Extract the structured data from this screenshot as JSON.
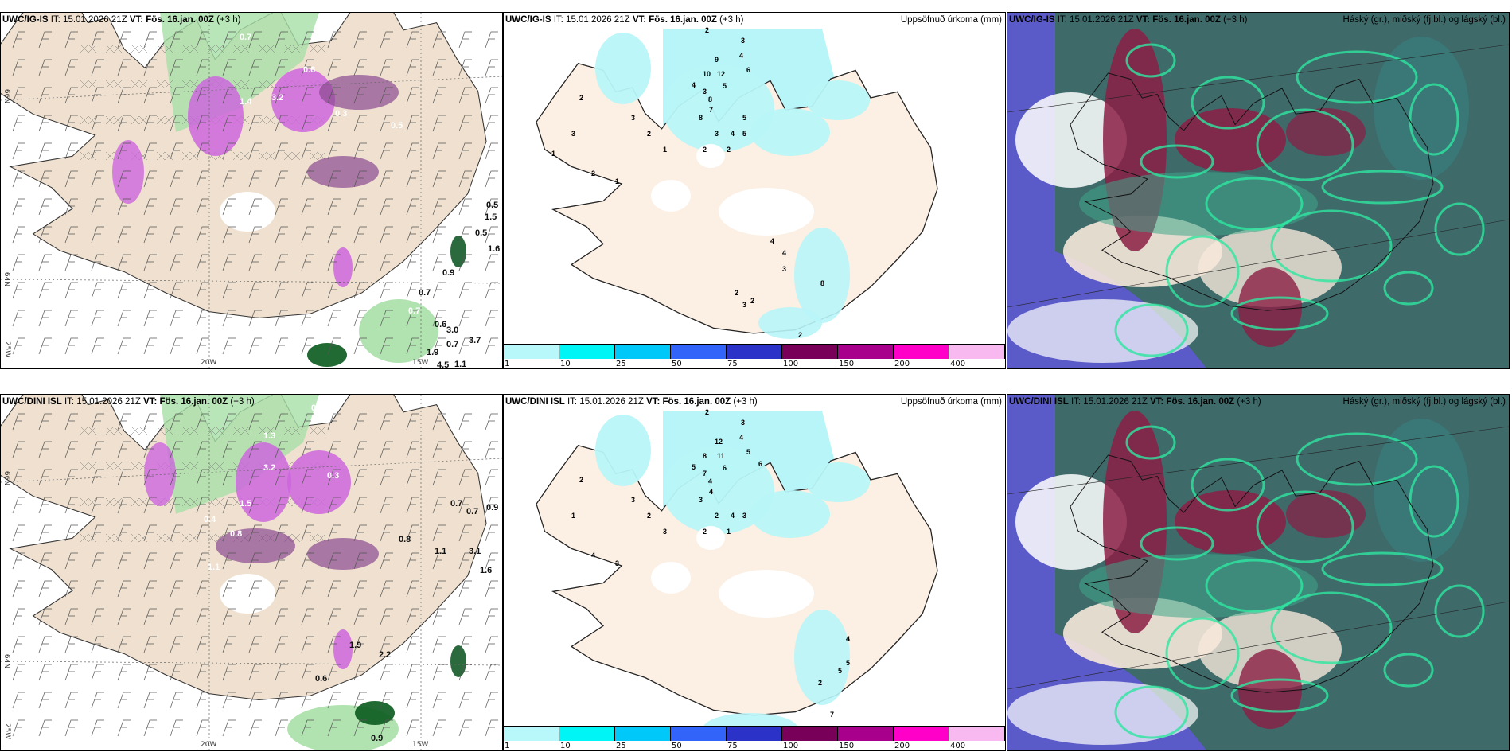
{
  "common": {
    "it_label": "IT:",
    "it_value": "15.01.2026 21Z",
    "vt_label": "VT: Fös. 16.jan. 00Z",
    "lead": "(+3 h)"
  },
  "rows": [
    {
      "model": "UWC/IG-IS"
    },
    {
      "model": "UWC/DINI ISL"
    }
  ],
  "panels": {
    "precip_subtitle": "Uppsöfnuð úrkoma (mm)",
    "cloud_subtitle": "Háský (gr.), miðský (fj.bl.) og lágský (bl.)"
  },
  "axes": {
    "lat_66": "66N",
    "lat_64": "64N",
    "lon_25": "25W",
    "lon_20": "20W",
    "lon_15": "15W"
  },
  "legend": {
    "ticks": [
      "1",
      "10",
      "25",
      "50",
      "75",
      "100",
      "150",
      "200",
      "400"
    ],
    "colors": [
      "#b8f8fa",
      "#00f6f6",
      "#00c8f8",
      "#3264fa",
      "#2a32c8",
      "#780058",
      "#a8008c",
      "#ff00c8",
      "#f8b8f0"
    ]
  },
  "map_values": {
    "precip_row1": [
      "0.7",
      "0.6",
      "3.2",
      "1.4",
      "0.3",
      "0.5",
      "0.6",
      "0.7",
      "0.6",
      "0.7",
      "0.5",
      "0.5",
      "0.7",
      "1.9",
      "3.0",
      "1.1",
      "3.7",
      "4.5",
      "1.6",
      "1.5",
      "0.9"
    ],
    "precip_row2": [
      "0.6",
      "1.3",
      "3.2",
      "1.5",
      "0.4",
      "0.8",
      "1.1",
      "0.3",
      "0.7",
      "0.9",
      "0.7",
      "3.1",
      "1.6",
      "0.8",
      "1.1",
      "0.6",
      "0.9",
      "1.0",
      "2.2",
      "1.9"
    ],
    "accum_row1": [
      "2",
      "3",
      "4",
      "6",
      "9",
      "12",
      "10",
      "8",
      "4",
      "3",
      "5",
      "7",
      "8",
      "4",
      "5",
      "5",
      "3",
      "2",
      "2",
      "1",
      "2",
      "3",
      "2",
      "1",
      "3",
      "2",
      "1",
      "2",
      "2",
      "4",
      "3",
      "4",
      "8",
      "2",
      "1",
      "3"
    ],
    "accum_row2": [
      "2",
      "3",
      "4",
      "5",
      "6",
      "12",
      "11",
      "8",
      "4",
      "5",
      "7",
      "6",
      "4",
      "3",
      "4",
      "3",
      "2",
      "1",
      "2",
      "3",
      "2",
      "3",
      "4",
      "3",
      "1",
      "2",
      "4",
      "5",
      "5",
      "7",
      "6",
      "2"
    ]
  },
  "colors": {
    "land_wind": "#efe0cf",
    "land_precip": "#fcefe3",
    "precip_light": "#b8f5f8",
    "snow": "#cc66dd",
    "rain": "#a8e0a8",
    "cloud_high": "#3f6a6a",
    "cloud_mid": "#8b1e44",
    "cloud_low": "#5a5ac8"
  }
}
